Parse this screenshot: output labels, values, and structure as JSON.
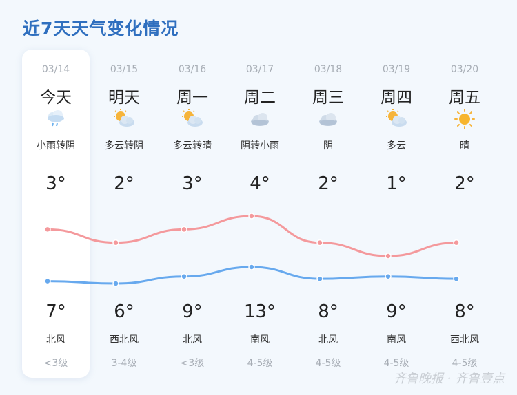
{
  "title": "近7天天气变化情况",
  "watermark": "齐鲁晚报 · 齐鲁壹点",
  "colors": {
    "high": "#f4999c",
    "low": "#67a9ee",
    "title": "#2f6fbf"
  },
  "days": [
    {
      "date": "03/14",
      "day": "今天",
      "icon": "light-rain-icon",
      "cond": "小雨转阴",
      "high": "3°",
      "low": "7°",
      "wind": "北风",
      "level": "<3级"
    },
    {
      "date": "03/15",
      "day": "明天",
      "icon": "partly-cloudy-icon",
      "cond": "多云转阴",
      "high": "2°",
      "low": "6°",
      "wind": "西北风",
      "level": "3-4级"
    },
    {
      "date": "03/16",
      "day": "周一",
      "icon": "partly-cloudy-icon",
      "cond": "多云转晴",
      "high": "3°",
      "low": "9°",
      "wind": "北风",
      "level": "<3级"
    },
    {
      "date": "03/17",
      "day": "周二",
      "icon": "cloudy-icon",
      "cond": "阴转小雨",
      "high": "4°",
      "low": "13°",
      "wind": "南风",
      "level": "4-5级"
    },
    {
      "date": "03/18",
      "day": "周三",
      "icon": "cloudy-icon",
      "cond": "阴",
      "high": "2°",
      "low": "8°",
      "wind": "北风",
      "level": "4-5级"
    },
    {
      "date": "03/19",
      "day": "周四",
      "icon": "partly-cloudy-icon",
      "cond": "多云",
      "high": "1°",
      "low": "9°",
      "wind": "南风",
      "level": "4-5级"
    },
    {
      "date": "03/20",
      "day": "周五",
      "icon": "sunny-icon",
      "cond": "晴",
      "high": "2°",
      "low": "8°",
      "wind": "西北风",
      "level": "4-5级"
    }
  ],
  "chart_data": {
    "type": "line",
    "series": [
      {
        "values": [
          3,
          2,
          3,
          4,
          2,
          1,
          2
        ]
      },
      {
        "values": [
          7,
          6,
          9,
          13,
          8,
          9,
          8
        ]
      }
    ]
  }
}
